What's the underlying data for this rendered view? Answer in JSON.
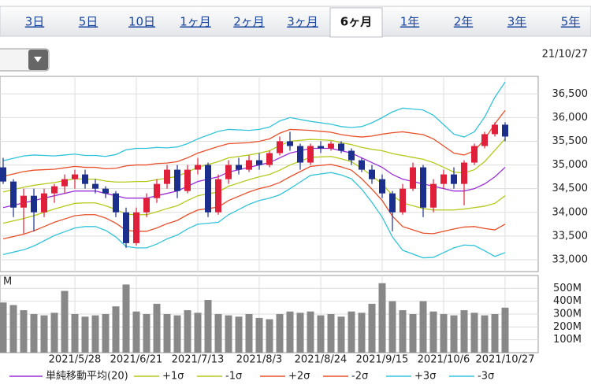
{
  "header": {
    "tabs": [
      "3日",
      "5日",
      "10日",
      "1ヶ月",
      "2ヶ月",
      "3ヶ月",
      "6ヶ月",
      "1年",
      "2年",
      "3年",
      "5年"
    ],
    "selected_tab": 6,
    "date": "21/10/27"
  },
  "chart_data": [
    {
      "type": "candlestick",
      "up_color": "#e0203a",
      "down_color": "#1c2f8c",
      "legend": "bottom",
      "grid": true,
      "ylim": [
        32750,
        36870
      ],
      "yticks": [
        {
          "value": 33000,
          "label": "33,000"
        },
        {
          "value": 33500,
          "label": "33,500"
        },
        {
          "value": 34000,
          "label": "34,000"
        },
        {
          "value": 34500,
          "label": "34,500"
        },
        {
          "value": 35000,
          "label": "35,000"
        },
        {
          "value": 35500,
          "label": "35,500"
        },
        {
          "value": 36000,
          "label": "36,000"
        },
        {
          "value": 36500,
          "label": "36,500"
        }
      ],
      "ohlc": [
        [
          34950,
          35150,
          34600,
          34650
        ],
        [
          34650,
          34700,
          33900,
          34100
        ],
        [
          34100,
          34500,
          33550,
          34350
        ],
        [
          34350,
          34500,
          33600,
          34000
        ],
        [
          34000,
          34500,
          33900,
          34400
        ],
        [
          34400,
          34600,
          34200,
          34550
        ],
        [
          34550,
          34800,
          34400,
          34700
        ],
        [
          34700,
          34900,
          34500,
          34800
        ],
        [
          34800,
          34900,
          34500,
          34600
        ],
        [
          34600,
          34700,
          34400,
          34500
        ],
        [
          34500,
          34550,
          34300,
          34400
        ],
        [
          34400,
          34450,
          33900,
          34000
        ],
        [
          34000,
          34100,
          33250,
          33350
        ],
        [
          33350,
          34100,
          33300,
          34000
        ],
        [
          34000,
          34400,
          33900,
          34300
        ],
        [
          34300,
          34700,
          34200,
          34600
        ],
        [
          34600,
          35000,
          34500,
          34900
        ],
        [
          34900,
          35000,
          34300,
          34450
        ],
        [
          34450,
          35000,
          34400,
          34900
        ],
        [
          34900,
          35150,
          34800,
          35000
        ],
        [
          35000,
          35050,
          33900,
          34000
        ],
        [
          34000,
          34800,
          33950,
          34700
        ],
        [
          34700,
          35100,
          34600,
          35000
        ],
        [
          35000,
          35150,
          34800,
          34900
        ],
        [
          34900,
          35200,
          34850,
          35100
        ],
        [
          35100,
          35250,
          34900,
          35000
        ],
        [
          35000,
          35300,
          34950,
          35250
        ],
        [
          35250,
          35600,
          35200,
          35500
        ],
        [
          35500,
          35700,
          35300,
          35400
        ],
        [
          35400,
          35450,
          34900,
          35050
        ],
        [
          35050,
          35450,
          35000,
          35400
        ],
        [
          35400,
          35500,
          35250,
          35350
        ],
        [
          35350,
          35500,
          35300,
          35450
        ],
        [
          35450,
          35500,
          35250,
          35300
        ],
        [
          35300,
          35350,
          35000,
          35100
        ],
        [
          35100,
          35150,
          34850,
          34900
        ],
        [
          34900,
          35000,
          34600,
          34700
        ],
        [
          34700,
          34800,
          34300,
          34400
        ],
        [
          34400,
          34450,
          33600,
          34000
        ],
        [
          34000,
          34600,
          33950,
          34500
        ],
        [
          34500,
          35050,
          34450,
          34950
        ],
        [
          34950,
          35000,
          33900,
          34100
        ],
        [
          34100,
          34700,
          34000,
          34600
        ],
        [
          34600,
          34900,
          34500,
          34800
        ],
        [
          34800,
          34950,
          34500,
          34600
        ],
        [
          34600,
          35100,
          34150,
          35050
        ],
        [
          35050,
          35450,
          35000,
          35400
        ],
        [
          35400,
          35700,
          35350,
          35650
        ],
        [
          35650,
          35900,
          35600,
          35850
        ],
        [
          35850,
          35900,
          35500,
          35600
        ]
      ],
      "series": [
        {
          "name": "単純移動平均(20)",
          "color": "#9b30d9",
          "values": [
            34100,
            34150,
            34200,
            34250,
            34300,
            34350,
            34400,
            34450,
            34450,
            34450,
            34400,
            34350,
            34300,
            34300,
            34300,
            34350,
            34400,
            34450,
            34550,
            34650,
            34700,
            34750,
            34850,
            34900,
            34950,
            35000,
            35050,
            35150,
            35250,
            35300,
            35350,
            35350,
            35350,
            35300,
            35250,
            35150,
            35050,
            34950,
            34800,
            34700,
            34650,
            34600,
            34550,
            34500,
            34450,
            34450,
            34500,
            34600,
            34750,
            34950
          ]
        },
        {
          "name": "+1σ",
          "color": "#b5c91c",
          "values": [
            34430,
            34480,
            34530,
            34570,
            34600,
            34630,
            34670,
            34710,
            34700,
            34700,
            34660,
            34640,
            34640,
            34650,
            34650,
            34690,
            34720,
            34760,
            34850,
            34950,
            35010,
            35070,
            35150,
            35180,
            35210,
            35250,
            35300,
            35410,
            35500,
            35520,
            35540,
            35530,
            35520,
            35470,
            35430,
            35370,
            35330,
            35300,
            35240,
            35200,
            35160,
            35120,
            35050,
            34950,
            34850,
            34830,
            34900,
            35070,
            35310,
            35550
          ]
        },
        {
          "name": "-1σ",
          "color": "#b5c91c",
          "values": [
            33770,
            33820,
            33870,
            33930,
            34000,
            34070,
            34130,
            34190,
            34200,
            34200,
            34140,
            34060,
            33960,
            33950,
            33950,
            34010,
            34080,
            34140,
            34250,
            34350,
            34390,
            34430,
            34550,
            34620,
            34690,
            34750,
            34800,
            34890,
            35000,
            35080,
            35160,
            35170,
            35180,
            35130,
            35070,
            34930,
            34770,
            34600,
            34360,
            34200,
            34140,
            34080,
            34050,
            34050,
            34050,
            34070,
            34100,
            34130,
            34190,
            34350
          ]
        },
        {
          "name": "+2σ",
          "color": "#e8502a",
          "values": [
            34760,
            34810,
            34860,
            34890,
            34900,
            34910,
            34940,
            34970,
            34950,
            34950,
            34920,
            34930,
            34980,
            35000,
            35000,
            35030,
            35040,
            35070,
            35150,
            35250,
            35320,
            35390,
            35450,
            35460,
            35470,
            35500,
            35550,
            35670,
            35750,
            35740,
            35730,
            35710,
            35690,
            35640,
            35610,
            35590,
            35610,
            35650,
            35680,
            35700,
            35670,
            35640,
            35550,
            35400,
            35250,
            35210,
            35300,
            35540,
            35870,
            36150
          ]
        },
        {
          "name": "-2σ",
          "color": "#e8502a",
          "values": [
            33440,
            33490,
            33540,
            33610,
            33700,
            33790,
            33860,
            33930,
            33950,
            33950,
            33880,
            33770,
            33620,
            33600,
            33600,
            33670,
            33760,
            33830,
            33950,
            34050,
            34080,
            34110,
            34250,
            34340,
            34430,
            34500,
            34550,
            34630,
            34750,
            34860,
            34970,
            34990,
            35010,
            34960,
            34890,
            34710,
            34490,
            34250,
            33920,
            33700,
            33630,
            33560,
            33550,
            33600,
            33650,
            33690,
            33700,
            33660,
            33630,
            33750
          ]
        },
        {
          "name": "+3σ",
          "color": "#33c3da",
          "values": [
            35090,
            35140,
            35190,
            35210,
            35200,
            35190,
            35210,
            35230,
            35200,
            35200,
            35180,
            35220,
            35320,
            35350,
            35350,
            35370,
            35360,
            35380,
            35450,
            35550,
            35630,
            35710,
            35750,
            35740,
            35730,
            35750,
            35800,
            35930,
            36000,
            35960,
            35920,
            35890,
            35860,
            35810,
            35790,
            35810,
            35890,
            36000,
            36120,
            36200,
            36180,
            36160,
            36050,
            35850,
            35650,
            35590,
            35700,
            36010,
            36430,
            36750
          ]
        },
        {
          "name": "-3σ",
          "color": "#33c3da",
          "values": [
            33110,
            33160,
            33210,
            33290,
            33400,
            33510,
            33590,
            33670,
            33700,
            33700,
            33620,
            33480,
            33280,
            33250,
            33250,
            33330,
            33440,
            33520,
            33650,
            33750,
            33770,
            33790,
            33950,
            34060,
            34170,
            34250,
            34300,
            34370,
            34500,
            34640,
            34780,
            34810,
            34840,
            34790,
            34710,
            34490,
            34210,
            33900,
            33480,
            33200,
            33120,
            33040,
            33050,
            33150,
            33250,
            33310,
            33300,
            33190,
            33070,
            33150
          ]
        }
      ]
    },
    {
      "type": "bar",
      "y_label": "M",
      "color": "#888888",
      "ylim": [
        0,
        600
      ],
      "yticks": [
        {
          "value": 100,
          "label": "100M"
        },
        {
          "value": 200,
          "label": "200M"
        },
        {
          "value": 300,
          "label": "300M"
        },
        {
          "value": 400,
          "label": "400M"
        },
        {
          "value": 500,
          "label": "500M"
        }
      ],
      "categories": [
        null,
        null,
        null,
        null,
        null,
        null,
        null,
        "2021/5/28",
        null,
        null,
        null,
        null,
        null,
        "2021/6/21",
        null,
        null,
        null,
        null,
        null,
        "2021/7/13",
        null,
        null,
        null,
        null,
        null,
        "2021/8/3",
        null,
        null,
        null,
        null,
        null,
        "2021/8/24",
        null,
        null,
        null,
        null,
        null,
        "2021/9/15",
        null,
        null,
        null,
        null,
        null,
        "2021/10/6",
        null,
        null,
        null,
        null,
        null,
        "2021/10/27"
      ],
      "values": [
        390,
        370,
        330,
        300,
        290,
        310,
        480,
        300,
        280,
        290,
        300,
        360,
        530,
        320,
        300,
        380,
        300,
        290,
        330,
        310,
        410,
        300,
        290,
        280,
        300,
        270,
        260,
        300,
        320,
        310,
        320,
        290,
        300,
        280,
        320,
        310,
        380,
        540,
        400,
        330,
        300,
        400,
        320,
        300,
        290,
        330,
        310,
        290,
        300,
        350
      ]
    }
  ]
}
